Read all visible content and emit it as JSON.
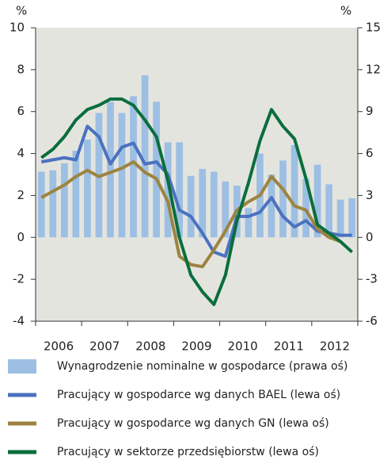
{
  "chart_data": {
    "type": "bar-line",
    "y_unit_left": "%",
    "y_unit_right": "%",
    "x_labels": [
      "2006",
      "2007",
      "2008",
      "2009",
      "2010",
      "2011",
      "2012"
    ],
    "ylim": [
      -4,
      10
    ],
    "yticks": [
      -4,
      -2,
      0,
      2,
      4,
      6,
      8,
      10
    ],
    "y2lim": [
      -6,
      15
    ],
    "y2ticks": [
      -6,
      -3,
      0,
      3,
      6,
      9,
      12,
      15
    ],
    "series": [
      {
        "name": "Wynagrodzenie nominalne w gospodarce (prawa oś)",
        "type": "bar",
        "axis": "y2",
        "color": "#9dbfe3",
        "values": [
          4.7,
          4.8,
          5.3,
          6.2,
          7.0,
          8.9,
          9.7,
          8.9,
          10.1,
          11.6,
          9.7,
          6.8,
          6.8,
          4.4,
          4.9,
          4.7,
          4.0,
          3.7,
          2.1,
          6.0,
          4.5,
          5.5,
          6.6,
          4.2,
          5.2,
          3.8,
          2.7,
          2.8
        ]
      },
      {
        "name": "Pracujący w gospodarce wg danych BAEL (lewa oś)",
        "type": "line",
        "color": "#4a72c0",
        "values": [
          3.6,
          3.7,
          3.8,
          3.7,
          5.3,
          4.8,
          3.5,
          4.3,
          4.5,
          3.5,
          3.6,
          3.0,
          1.3,
          1.0,
          0.2,
          -0.7,
          -0.9,
          1.0,
          1.0,
          1.2,
          1.9,
          1.0,
          0.5,
          0.8,
          0.3,
          0.2,
          0.1,
          0.1
        ]
      },
      {
        "name": "Pracujący w gospodarce wg danych GN (lewa oś)",
        "type": "line",
        "color": "#9c8440",
        "values": [
          1.9,
          2.2,
          2.5,
          2.9,
          3.2,
          2.9,
          3.1,
          3.3,
          3.6,
          3.1,
          2.8,
          1.7,
          -0.9,
          -1.3,
          -1.4,
          -0.6,
          0.3,
          1.3,
          1.7,
          2.0,
          2.9,
          2.3,
          1.5,
          1.3,
          0.4,
          0.0,
          -0.2,
          null
        ]
      },
      {
        "name": "Pracujący w sektorze przedsiębiorstw (lewa oś)",
        "type": "line",
        "color": "#0a6e3c",
        "values": [
          3.8,
          4.2,
          4.8,
          5.6,
          6.1,
          6.3,
          6.6,
          6.6,
          6.3,
          5.6,
          4.8,
          2.7,
          0.0,
          -1.8,
          -2.6,
          -3.2,
          -1.8,
          0.8,
          2.6,
          4.6,
          6.1,
          5.3,
          4.7,
          2.8,
          0.6,
          0.2,
          -0.2,
          -0.7
        ]
      }
    ]
  }
}
